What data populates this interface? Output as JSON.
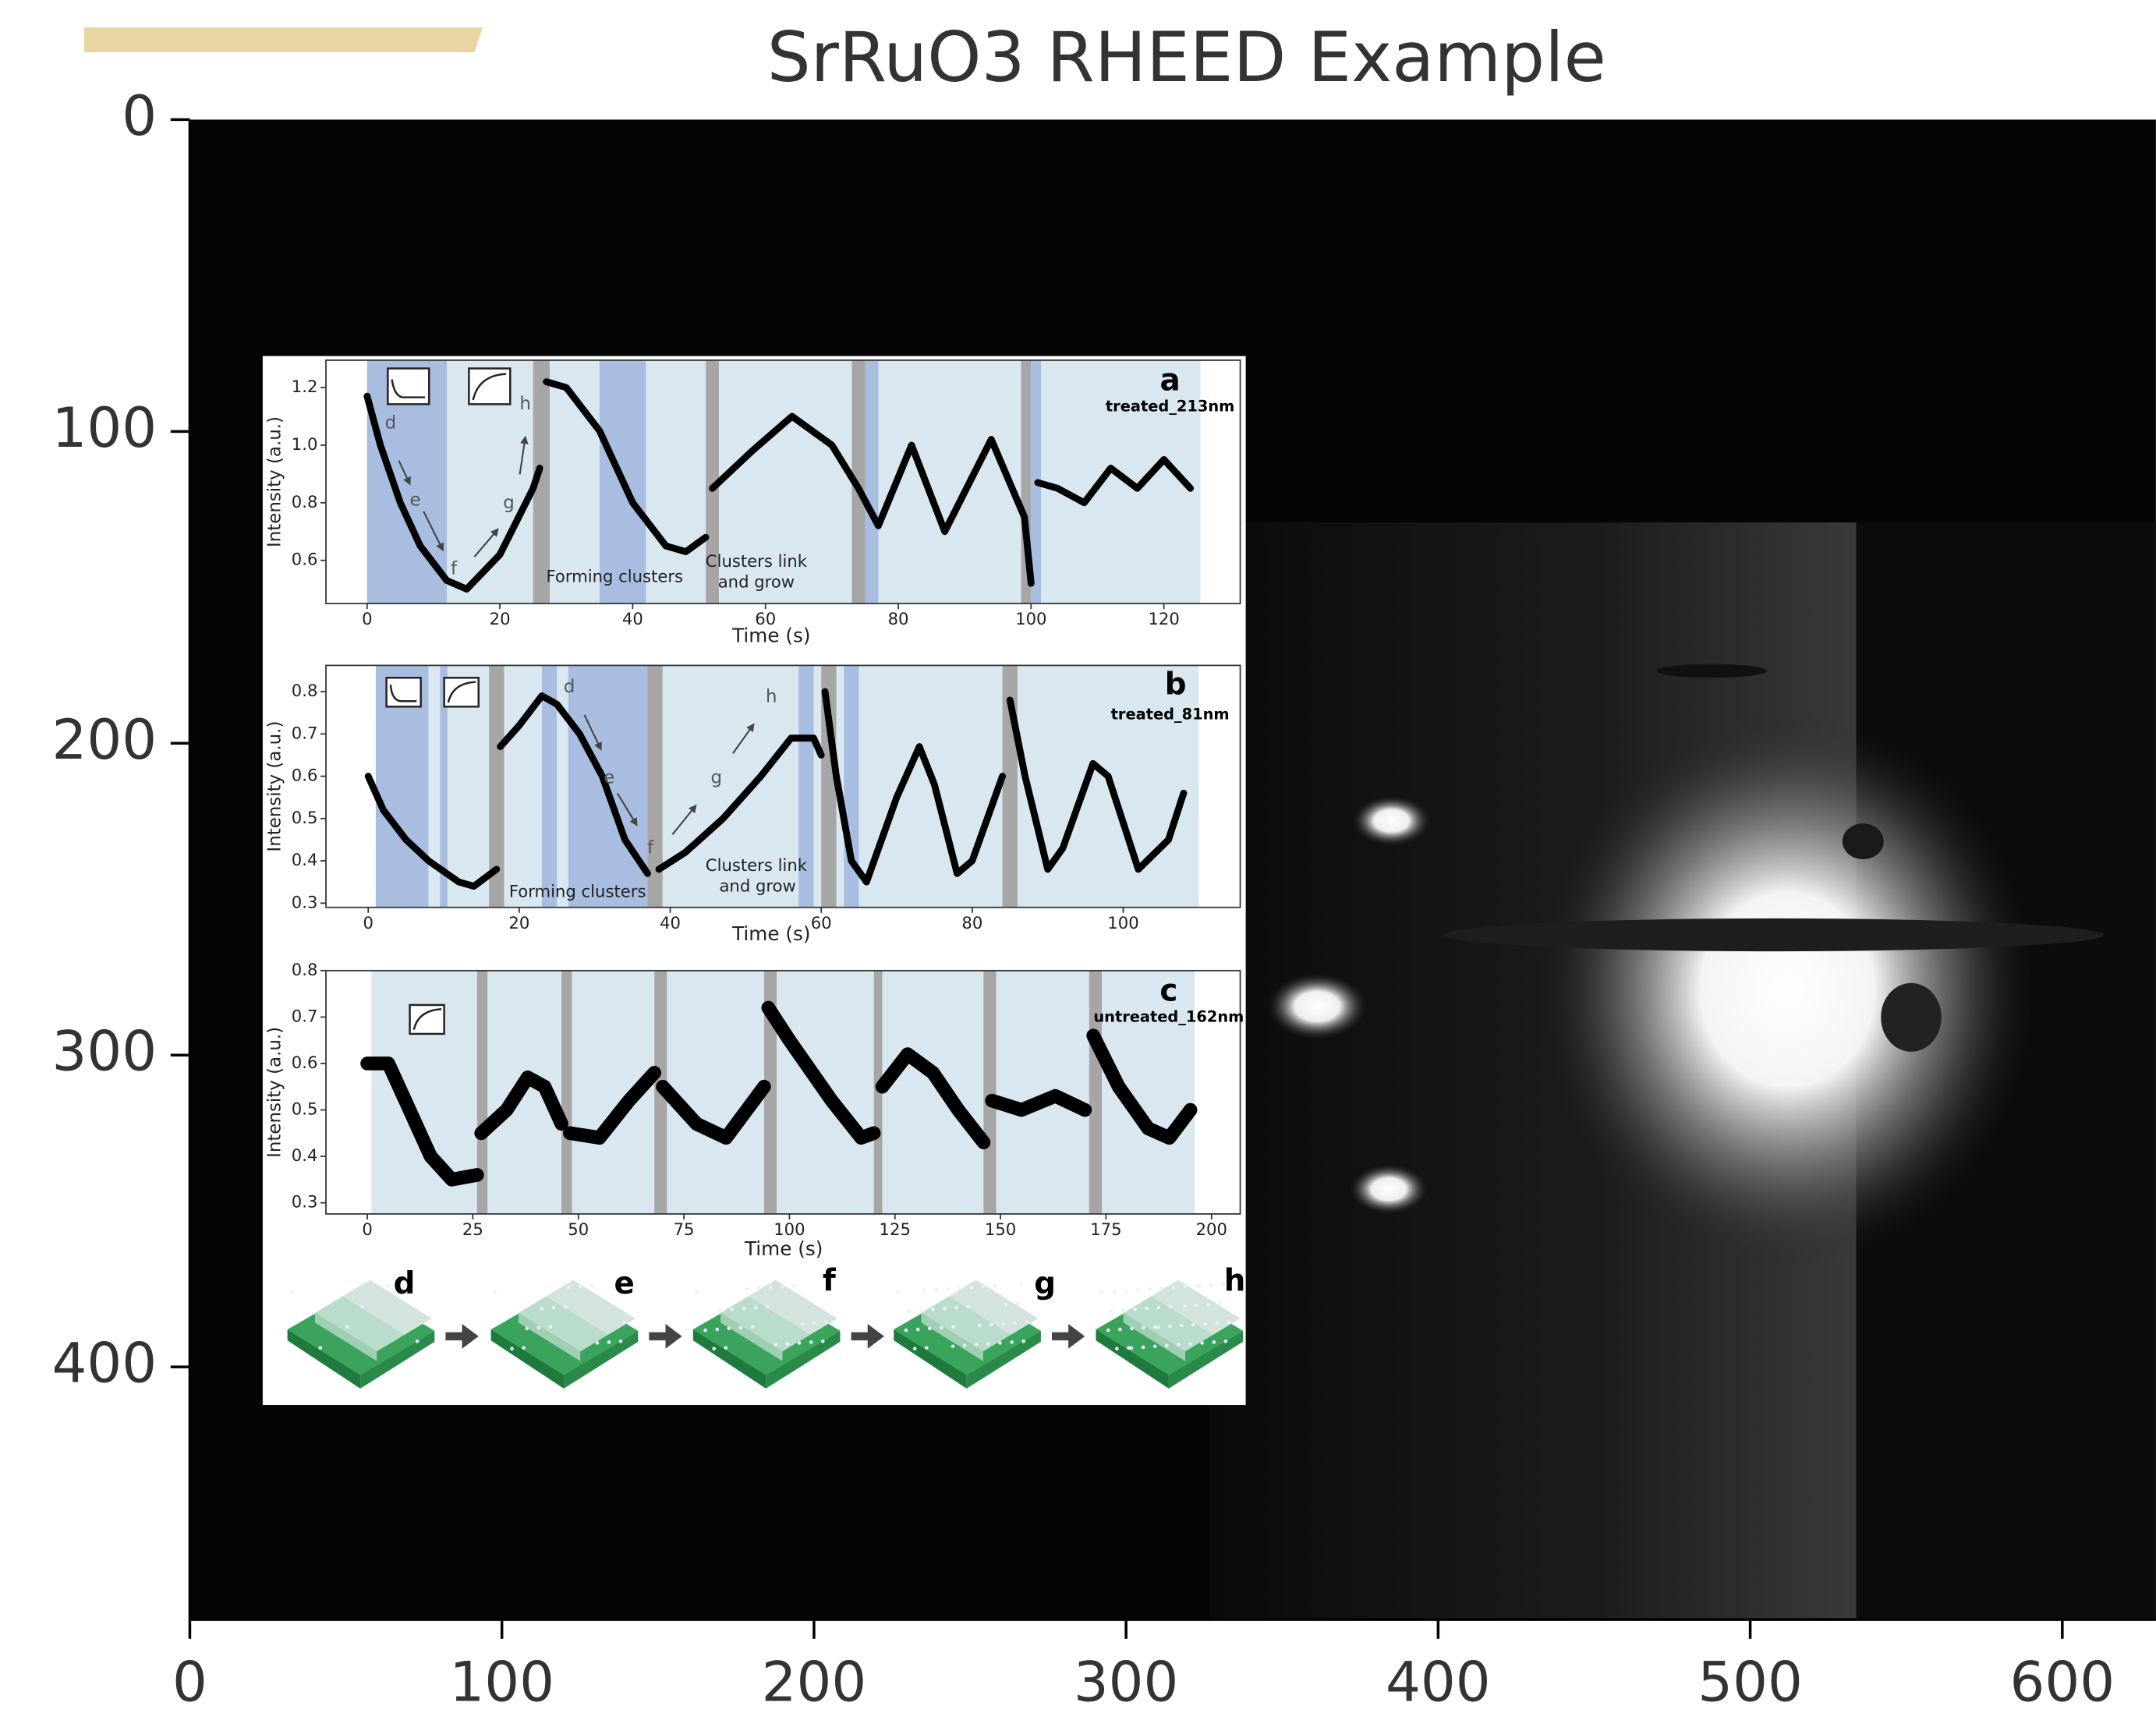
{
  "chart_data": [
    {
      "type": "image",
      "title": "SrRuO3 RHEED Example",
      "xlim": [
        0,
        630
      ],
      "ylim": [
        481,
        0
      ],
      "xticks": [
        0,
        100,
        200,
        300,
        400,
        500,
        600
      ],
      "yticks": [
        0,
        100,
        200,
        300,
        400
      ]
    },
    {
      "type": "line",
      "title": "a",
      "subtitle": "treated_213nm",
      "xlabel": "Time (s)",
      "ylabel": "Intensity (a.u.)",
      "annotations": [
        "Forming clusters",
        "Clusters link",
        "and grow",
        "d",
        "e",
        "f",
        "g",
        "h"
      ],
      "xlim": [
        -6.2,
        131.5
      ],
      "ylim": [
        0.45,
        1.295
      ],
      "xticks": [
        0,
        20,
        40,
        60,
        80,
        100,
        120
      ],
      "yticks": [
        0.6,
        0.8,
        {
          "value": 1,
          "label": "1.0"
        },
        1.2
      ],
      "color": "#000000",
      "x": [
        0,
        2,
        5,
        8,
        12,
        15,
        20,
        25,
        26,
        26.5,
        27,
        30,
        35,
        40,
        45,
        48,
        51,
        51.5,
        52,
        58,
        64,
        70,
        74,
        77,
        82,
        87,
        94,
        99,
        100,
        100.5,
        101,
        104,
        108,
        112,
        116,
        120,
        124
      ],
      "values": [
        1.17,
        1.0,
        0.8,
        0.65,
        0.53,
        0.5,
        0.62,
        0.85,
        0.92,
        null,
        1.22,
        1.2,
        1.05,
        0.8,
        0.65,
        0.63,
        0.68,
        null,
        0.85,
        0.98,
        1.1,
        1.0,
        0.85,
        0.72,
        1.0,
        0.7,
        1.02,
        0.75,
        0.52,
        null,
        0.87,
        0.85,
        0.8,
        0.92,
        0.85,
        0.95,
        0.85
      ],
      "spans": [
        {
          "start": 0,
          "end": 12,
          "color": "#a9bde0"
        },
        {
          "start": 12,
          "end": 25,
          "color": "#d8e7f0"
        },
        {
          "start": 25,
          "end": 27.5,
          "color": "#a6a6a6"
        },
        {
          "start": 27.5,
          "end": 35,
          "color": "#d8e7f0"
        },
        {
          "start": 35,
          "end": 42,
          "color": "#a9bde0"
        },
        {
          "start": 42,
          "end": 51,
          "color": "#d8e7f0"
        },
        {
          "start": 51,
          "end": 53,
          "color": "#a6a6a6"
        },
        {
          "start": 53,
          "end": 73,
          "color": "#d8e7f0"
        },
        {
          "start": 73,
          "end": 75,
          "color": "#a6a6a6"
        },
        {
          "start": 75,
          "end": 77,
          "color": "#a9bde0"
        },
        {
          "start": 77,
          "end": 98.5,
          "color": "#d8e7f0"
        },
        {
          "start": 98.5,
          "end": 100,
          "color": "#a6a6a6"
        },
        {
          "start": 100,
          "end": 101.5,
          "color": "#a9bde0"
        },
        {
          "start": 101.5,
          "end": 125.5,
          "color": "#d8e7f0"
        }
      ]
    },
    {
      "type": "line",
      "title": "b",
      "subtitle": "treated_81nm",
      "xlabel": "Time (s)",
      "ylabel": "Intensity (a.u.)",
      "annotations": [
        "Forming clusters",
        "Clusters link",
        "and grow",
        "d",
        "e",
        "f",
        "g",
        "h"
      ],
      "xlim": [
        -5.6,
        115.5
      ],
      "ylim": [
        0.29,
        0.862
      ],
      "xticks": [
        0,
        20,
        40,
        60,
        80,
        100
      ],
      "yticks": [
        0.3,
        0.4,
        0.5,
        0.6,
        0.7,
        0.8
      ],
      "color": "#000000",
      "x": [
        0,
        2,
        5,
        8,
        12,
        14,
        17,
        17.2,
        17.5,
        20,
        23,
        25,
        28,
        31,
        34,
        37,
        37.5,
        38.5,
        42,
        47,
        52,
        56,
        59,
        60,
        60.2,
        60.5,
        62,
        64,
        66,
        70,
        73,
        75,
        78,
        80,
        84,
        84.5,
        85,
        87,
        90,
        92,
        96,
        98,
        102,
        106,
        108
      ],
      "values": [
        0.6,
        0.52,
        0.45,
        0.4,
        0.35,
        0.34,
        0.38,
        null,
        0.67,
        0.72,
        0.79,
        0.77,
        0.7,
        0.6,
        0.45,
        0.37,
        null,
        0.38,
        0.42,
        0.5,
        0.6,
        0.69,
        0.69,
        0.65,
        null,
        0.8,
        0.6,
        0.4,
        0.35,
        0.55,
        0.67,
        0.58,
        0.37,
        0.4,
        0.6,
        null,
        0.78,
        0.6,
        0.38,
        0.43,
        0.63,
        0.6,
        0.38,
        0.45,
        0.56
      ],
      "spans": [
        {
          "start": 1,
          "end": 8,
          "color": "#a9bde0"
        },
        {
          "start": 8,
          "end": 9.5,
          "color": "#d8e7f0"
        },
        {
          "start": 9.5,
          "end": 10.5,
          "color": "#a9bde0"
        },
        {
          "start": 10.5,
          "end": 16,
          "color": "#d8e7f0"
        },
        {
          "start": 16,
          "end": 18,
          "color": "#a6a6a6"
        },
        {
          "start": 18,
          "end": 23,
          "color": "#d8e7f0"
        },
        {
          "start": 23,
          "end": 25,
          "color": "#a9bde0"
        },
        {
          "start": 25,
          "end": 26.5,
          "color": "#d8e7f0"
        },
        {
          "start": 26.5,
          "end": 37,
          "color": "#a9bde0"
        },
        {
          "start": 37,
          "end": 39,
          "color": "#a6a6a6"
        },
        {
          "start": 39,
          "end": 57,
          "color": "#d8e7f0"
        },
        {
          "start": 57,
          "end": 59,
          "color": "#a9bde0"
        },
        {
          "start": 59,
          "end": 60,
          "color": "#d8e7f0"
        },
        {
          "start": 60,
          "end": 62,
          "color": "#a6a6a6"
        },
        {
          "start": 62,
          "end": 63,
          "color": "#d8e7f0"
        },
        {
          "start": 63,
          "end": 65,
          "color": "#a9bde0"
        },
        {
          "start": 65,
          "end": 84,
          "color": "#d8e7f0"
        },
        {
          "start": 84,
          "end": 86,
          "color": "#a6a6a6"
        },
        {
          "start": 86,
          "end": 110,
          "color": "#d8e7f0"
        }
      ]
    },
    {
      "type": "line",
      "title": "c",
      "subtitle": "untreated_162nm",
      "xlabel": "Time (s)",
      "ylabel": "Intensity (a.u.)",
      "annotations": [],
      "xlim": [
        -9.8,
        206.8
      ],
      "ylim": [
        0.276,
        0.8
      ],
      "xticks": [
        0,
        25,
        50,
        75,
        100,
        125,
        150,
        175,
        200
      ],
      "yticks": [
        0.3,
        0.4,
        0.5,
        0.6,
        0.7,
        0.8
      ],
      "color": "#000000",
      "x": [
        0,
        5,
        10,
        15,
        20,
        26,
        26.5,
        27,
        33,
        38,
        42,
        46,
        47,
        48,
        55,
        62,
        68,
        69,
        70,
        78,
        85,
        94,
        94.5,
        95,
        100,
        110,
        117,
        120,
        121,
        122,
        128,
        134,
        140,
        146,
        147,
        148,
        155,
        163,
        170,
        171,
        172,
        178,
        185,
        190,
        195
      ],
      "values": [
        0.6,
        0.6,
        0.5,
        0.4,
        0.35,
        0.36,
        null,
        0.45,
        0.5,
        0.57,
        0.55,
        0.47,
        null,
        0.45,
        0.44,
        0.52,
        0.58,
        null,
        0.55,
        0.47,
        0.44,
        0.55,
        null,
        0.72,
        0.65,
        0.52,
        0.44,
        0.45,
        null,
        0.55,
        0.62,
        0.58,
        0.5,
        0.43,
        null,
        0.52,
        0.5,
        0.53,
        0.5,
        null,
        0.66,
        0.55,
        0.46,
        0.44,
        0.5
      ],
      "spans": [
        {
          "start": 1,
          "end": 26,
          "color": "#d8e7f0"
        },
        {
          "start": 26,
          "end": 28.5,
          "color": "#a6a6a6"
        },
        {
          "start": 28.5,
          "end": 46,
          "color": "#d8e7f0"
        },
        {
          "start": 46,
          "end": 48.5,
          "color": "#a6a6a6"
        },
        {
          "start": 48.5,
          "end": 68,
          "color": "#d8e7f0"
        },
        {
          "start": 68,
          "end": 71,
          "color": "#a6a6a6"
        },
        {
          "start": 71,
          "end": 94,
          "color": "#d8e7f0"
        },
        {
          "start": 94,
          "end": 97,
          "color": "#a6a6a6"
        },
        {
          "start": 97,
          "end": 120,
          "color": "#d8e7f0"
        },
        {
          "start": 120,
          "end": 122,
          "color": "#a6a6a6"
        },
        {
          "start": 122,
          "end": 146,
          "color": "#d8e7f0"
        },
        {
          "start": 146,
          "end": 149,
          "color": "#a6a6a6"
        },
        {
          "start": 149,
          "end": 171,
          "color": "#d8e7f0"
        },
        {
          "start": 171,
          "end": 174,
          "color": "#a6a6a6"
        },
        {
          "start": 174,
          "end": 196,
          "color": "#d8e7f0"
        }
      ]
    }
  ],
  "schematic_labels": [
    "d",
    "e",
    "f",
    "g",
    "h"
  ]
}
